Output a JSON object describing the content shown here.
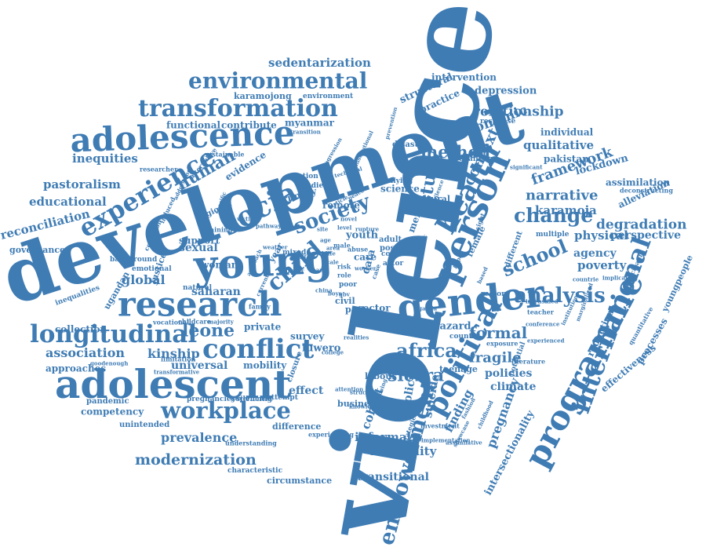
{
  "style": {
    "word_color": "#3f7cb4",
    "background": "#ffffff"
  },
  "words": [
    {
      "text": "violence",
      "weight": 100
    },
    {
      "text": "development",
      "weight": 78
    },
    {
      "text": "young",
      "weight": 50
    },
    {
      "text": "gender",
      "weight": 44
    },
    {
      "text": "person",
      "weight": 42
    },
    {
      "text": "research",
      "weight": 40
    },
    {
      "text": "adolescent",
      "weight": 44
    },
    {
      "text": "programme",
      "weight": 38
    },
    {
      "text": "political",
      "weight": 33
    },
    {
      "text": "adolescence",
      "weight": 36
    },
    {
      "text": "social",
      "weight": 33
    },
    {
      "text": "health",
      "weight": 32
    },
    {
      "text": "international",
      "weight": 30
    },
    {
      "text": "conflict",
      "weight": 30
    },
    {
      "text": "experience",
      "weight": 30
    },
    {
      "text": "transformation",
      "weight": 28
    },
    {
      "text": "longitudinal",
      "weight": 29
    },
    {
      "text": "workplace",
      "weight": 27
    },
    {
      "text": "environmental",
      "weight": 25
    },
    {
      "text": "empowerment",
      "weight": 24
    },
    {
      "text": "child",
      "weight": 26
    },
    {
      "text": "society",
      "weight": 24
    },
    {
      "text": "analysis",
      "weight": 24
    },
    {
      "text": "change",
      "weight": 22
    },
    {
      "text": "africa",
      "weight": 23
    },
    {
      "text": "school",
      "weight": 22
    },
    {
      "text": "study",
      "weight": 22
    },
    {
      "text": "method",
      "weight": 20
    },
    {
      "text": "sierra",
      "weight": 20
    },
    {
      "text": "leone",
      "weight": 21
    },
    {
      "text": "human",
      "weight": 20
    },
    {
      "text": "context",
      "weight": 18
    },
    {
      "text": "formal",
      "weight": 18
    },
    {
      "text": "fragile",
      "weight": 17
    },
    {
      "text": "modernization",
      "weight": 17
    },
    {
      "text": "framework",
      "weight": 16
    },
    {
      "text": "narrative",
      "weight": 16
    },
    {
      "text": "economic",
      "weight": 16
    },
    {
      "text": "relationship",
      "weight": 16
    },
    {
      "text": "degradation",
      "weight": 16
    },
    {
      "text": "prevalence",
      "weight": 15
    },
    {
      "text": "kinship",
      "weight": 15
    },
    {
      "text": "association",
      "weight": 15
    },
    {
      "text": "global",
      "weight": 15
    },
    {
      "text": "pregnancy",
      "weight": 15
    },
    {
      "text": "sedentarization",
      "weight": 14
    },
    {
      "text": "educational",
      "weight": 14
    },
    {
      "text": "pastoralism",
      "weight": 14
    },
    {
      "text": "reconciliation",
      "weight": 14
    },
    {
      "text": "inequities",
      "weight": 14
    },
    {
      "text": "inequality",
      "weight": 14
    },
    {
      "text": "informal",
      "weight": 14
    },
    {
      "text": "karamoja",
      "weight": 14
    },
    {
      "text": "qualitative",
      "weight": 14
    },
    {
      "text": "poverty",
      "weight": 14
    },
    {
      "text": "physical",
      "weight": 14
    },
    {
      "text": "perspective",
      "weight": 13
    },
    {
      "text": "agency",
      "weight": 13
    },
    {
      "text": "policies",
      "weight": 13
    },
    {
      "text": "climate",
      "weight": 13
    },
    {
      "text": "finding",
      "weight": 14
    },
    {
      "text": "cohort",
      "weight": 14
    },
    {
      "text": "policy",
      "weight": 13
    },
    {
      "text": "suicide",
      "weight": 13
    },
    {
      "text": "transitional",
      "weight": 13
    },
    {
      "text": "universal",
      "weight": 13
    },
    {
      "text": "effect",
      "weight": 13
    },
    {
      "text": "sexual",
      "weight": 13
    },
    {
      "text": "saharan",
      "weight": 13
    },
    {
      "text": "youth",
      "weight": 12
    },
    {
      "text": "data",
      "weight": 12
    },
    {
      "text": "hazard",
      "weight": 12
    },
    {
      "text": "depression",
      "weight": 12
    },
    {
      "text": "structural",
      "weight": 12
    },
    {
      "text": "practice",
      "weight": 12
    },
    {
      "text": "intervention",
      "weight": 11
    },
    {
      "text": "lockdown",
      "weight": 12
    },
    {
      "text": "assimilation",
      "weight": 11
    },
    {
      "text": "alleviation",
      "weight": 11
    },
    {
      "text": "reduction",
      "weight": 12
    },
    {
      "text": "processes",
      "weight": 12
    },
    {
      "text": "effectiveness",
      "weight": 11
    },
    {
      "text": "youngpeople",
      "weight": 11
    },
    {
      "text": "intersectionality",
      "weight": 12
    },
    {
      "text": "pakistan",
      "weight": 11
    },
    {
      "text": "individual",
      "weight": 11
    },
    {
      "text": "collection",
      "weight": 11
    },
    {
      "text": "approaches",
      "weight": 11
    },
    {
      "text": "competency",
      "weight": 11
    },
    {
      "text": "difference",
      "weight": 11
    },
    {
      "text": "circumstance",
      "weight": 11
    },
    {
      "text": "governance",
      "weight": 11
    },
    {
      "text": "luwero",
      "weight": 12
    },
    {
      "text": "sector",
      "weight": 11
    },
    {
      "text": "science",
      "weight": 11
    },
    {
      "text": "survey",
      "weight": 11
    },
    {
      "text": "mobility",
      "weight": 11
    },
    {
      "text": "functional",
      "weight": 11
    },
    {
      "text": "contribute",
      "weight": 11
    },
    {
      "text": "myanmar",
      "weight": 11
    },
    {
      "text": "karamojong",
      "weight": 10
    },
    {
      "text": "environment",
      "weight": 9
    },
    {
      "text": "evidence",
      "weight": 11
    },
    {
      "text": "primary",
      "weight": 11
    },
    {
      "text": "remote",
      "weight": 11
    },
    {
      "text": "ugandan",
      "weight": 11
    },
    {
      "text": "justice",
      "weight": 11
    },
    {
      "text": "woman",
      "weight": 11
    },
    {
      "text": "support",
      "weight": 11
    },
    {
      "text": "private",
      "weight": 11
    },
    {
      "text": "year",
      "weight": 11
    },
    {
      "text": "mental",
      "weight": 12
    },
    {
      "text": "female",
      "weight": 11
    },
    {
      "text": "different",
      "weight": 10
    },
    {
      "text": "multiple",
      "weight": 9
    },
    {
      "text": "emotional",
      "weight": 9
    },
    {
      "text": "regional",
      "weight": 10
    },
    {
      "text": "care",
      "weight": 11
    },
    {
      "text": "adult",
      "weight": 10
    },
    {
      "text": "post",
      "weight": 10
    },
    {
      "text": "civil",
      "weight": 10
    },
    {
      "text": "past",
      "weight": 10
    },
    {
      "text": "form",
      "weight": 10
    },
    {
      "text": "teenage",
      "weight": 10
    },
    {
      "text": "business",
      "weight": 10
    },
    {
      "text": "labour",
      "weight": 10
    },
    {
      "text": "cultural",
      "weight": 10
    },
    {
      "text": "disaster",
      "weight": 10
    },
    {
      "text": "region",
      "weight": 9
    },
    {
      "text": "country",
      "weight": 9
    },
    {
      "text": "response",
      "weight": 9
    },
    {
      "text": "challenge",
      "weight": 9
    },
    {
      "text": "pandemic",
      "weight": 10
    },
    {
      "text": "unintended",
      "weight": 10
    },
    {
      "text": "characteristic",
      "weight": 9
    },
    {
      "text": "background",
      "weight": 9
    },
    {
      "text": "inequalities",
      "weight": 9
    },
    {
      "text": "vocational",
      "weight": 8
    },
    {
      "text": "goodenough",
      "weight": 7
    },
    {
      "text": "limitation",
      "weight": 8
    },
    {
      "text": "transformative",
      "weight": 7
    },
    {
      "text": "closure",
      "weight": 10
    },
    {
      "text": "attempt",
      "weight": 9
    },
    {
      "text": "silencing",
      "weight": 9
    },
    {
      "text": "pregnancies",
      "weight": 9
    },
    {
      "text": "experiencing",
      "weight": 8
    },
    {
      "text": "understanding",
      "weight": 8
    },
    {
      "text": "wave",
      "weight": 9
    },
    {
      "text": "extreme",
      "weight": 8
    },
    {
      "text": "investment",
      "weight": 8
    },
    {
      "text": "exposure",
      "weight": 8
    },
    {
      "text": "literature",
      "weight": 8
    },
    {
      "text": "potential",
      "weight": 9
    },
    {
      "text": "teacher",
      "weight": 8
    },
    {
      "text": "relation",
      "weight": 9
    },
    {
      "text": "studies",
      "weight": 9
    },
    {
      "text": "natural",
      "weight": 9
    },
    {
      "text": "childcare",
      "weight": 8
    },
    {
      "text": "majority",
      "weight": 7
    },
    {
      "text": "family",
      "weight": 8
    },
    {
      "text": "condition",
      "weight": 8
    },
    {
      "text": "induced",
      "weight": 8
    },
    {
      "text": "addressing",
      "weight": 7
    },
    {
      "text": "alternative",
      "weight": 8
    },
    {
      "text": "researcher",
      "weight": 8
    },
    {
      "text": "sustainable",
      "weight": 8
    },
    {
      "text": "mixed",
      "weight": 9
    },
    {
      "text": "training",
      "weight": 8
    },
    {
      "text": "male",
      "weight": 8
    },
    {
      "text": "abuse",
      "weight": 8
    },
    {
      "text": "government",
      "weight": 8
    },
    {
      "text": "bullying",
      "weight": 9
    },
    {
      "text": "covac",
      "weight": 9
    },
    {
      "text": "actor",
      "weight": 9
    },
    {
      "text": "poor",
      "weight": 9
    },
    {
      "text": "movement",
      "weight": 8
    },
    {
      "text": "prevention",
      "weight": 7
    },
    {
      "text": "regression",
      "weight": 7
    },
    {
      "text": "deconstructing",
      "weight": 8
    },
    {
      "text": "participant",
      "weight": 8
    },
    {
      "text": "quantitative",
      "weight": 8
    },
    {
      "text": "implication",
      "weight": 7
    },
    {
      "text": "countrie",
      "weight": 7
    },
    {
      "text": "conference",
      "weight": 7
    },
    {
      "text": "significant",
      "weight": 7
    },
    {
      "text": "strategies",
      "weight": 8
    },
    {
      "text": "showcase",
      "weight": 7
    },
    {
      "text": "wellbeing",
      "weight": 7
    },
    {
      "text": "knowledge",
      "weight": 7
    },
    {
      "text": "structure",
      "weight": 7
    },
    {
      "text": "implementation",
      "weight": 7
    },
    {
      "text": "assimilative",
      "weight": 7
    },
    {
      "text": "realities",
      "weight": 7
    },
    {
      "text": "insight",
      "weight": 8
    },
    {
      "text": "transition",
      "weight": 7
    },
    {
      "text": "technical",
      "weight": 7
    },
    {
      "text": "article",
      "weight": 7
    },
    {
      "text": "peace",
      "weight": 7
    },
    {
      "text": "risk",
      "weight": 8
    },
    {
      "text": "role",
      "weight": 8
    },
    {
      "text": "level",
      "weight": 7
    },
    {
      "text": "case",
      "weight": 8
    },
    {
      "text": "public",
      "weight": 7
    },
    {
      "text": "paper",
      "weight": 7
    },
    {
      "text": "rupture",
      "weight": 7
    },
    {
      "text": "silence",
      "weight": 7
    },
    {
      "text": "institutional",
      "weight": 7
    },
    {
      "text": "current",
      "weight": 7
    },
    {
      "text": "specific",
      "weight": 7
    },
    {
      "text": "function",
      "weight": 7
    },
    {
      "text": "more",
      "weight": 8
    },
    {
      "text": "based",
      "weight": 7
    },
    {
      "text": "attention",
      "weight": 7
    },
    {
      "text": "district",
      "weight": 7
    },
    {
      "text": "reality",
      "weight": 7
    },
    {
      "text": "factor",
      "weight": 7
    },
    {
      "text": "victims",
      "weight": 7
    },
    {
      "text": "weather",
      "weight": 7
    },
    {
      "text": "approach",
      "weight": 7
    },
    {
      "text": "intensified",
      "weight": 7
    },
    {
      "text": "experienced",
      "weight": 7
    },
    {
      "text": "marginalized",
      "weight": 7
    },
    {
      "text": "institution",
      "weight": 7
    },
    {
      "text": "childhood",
      "weight": 7
    },
    {
      "text": "fashion",
      "weight": 7
    },
    {
      "text": "scale",
      "weight": 7
    },
    {
      "text": "worker",
      "weight": 7
    },
    {
      "text": "team",
      "weight": 7
    },
    {
      "text": "college",
      "weight": 7
    },
    {
      "text": "site",
      "weight": 7
    },
    {
      "text": "novel",
      "weight": 7
    },
    {
      "text": "age",
      "weight": 7
    },
    {
      "text": "life",
      "weight": 7
    },
    {
      "text": "area",
      "weight": 7
    },
    {
      "text": "girl",
      "weight": 7
    },
    {
      "text": "pathway",
      "weight": 7
    },
    {
      "text": "uganda",
      "weight": 7
    },
    {
      "text": "china",
      "weight": 7
    },
    {
      "text": "boys",
      "weight": 7
    },
    {
      "text": "gbv",
      "weight": 7
    }
  ]
}
